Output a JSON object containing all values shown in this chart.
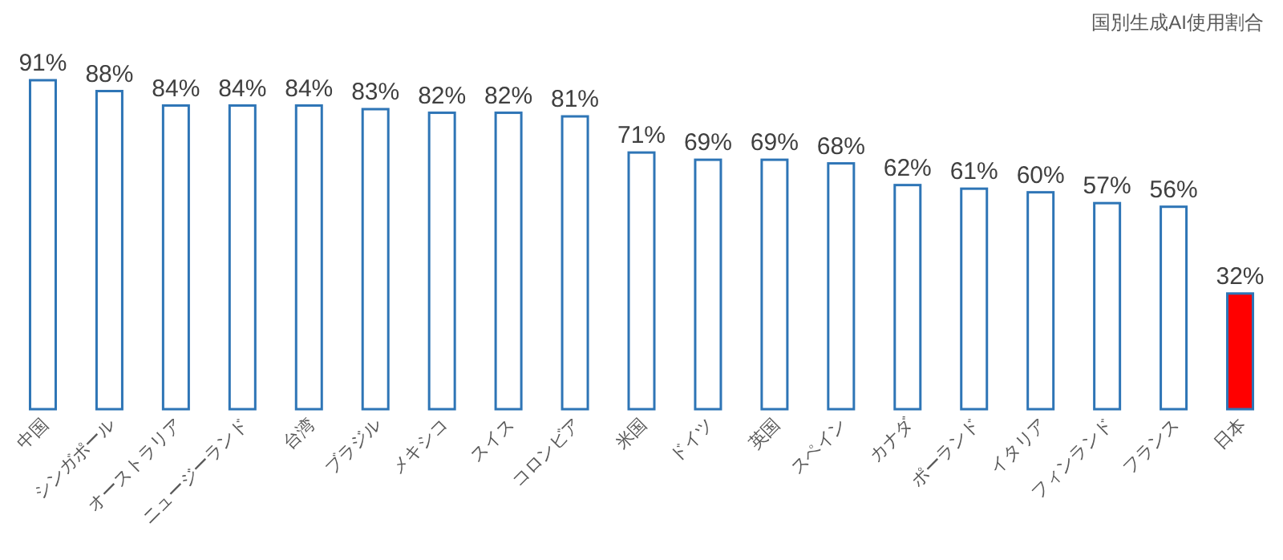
{
  "chart_data": {
    "type": "bar",
    "title": "国別生成AI使用割合",
    "categories": [
      "中国",
      "シンガポール",
      "オーストラリア",
      "ニュージーランド",
      "台湾",
      "ブラジル",
      "メキシコ",
      "スイス",
      "コロンビア",
      "米国",
      "ドイツ",
      "英国",
      "スペイン",
      "カナダ",
      "ポーランド",
      "イタリア",
      "フィンランド",
      "フランス",
      "日本"
    ],
    "values": [
      91,
      88,
      84,
      84,
      84,
      83,
      82,
      82,
      81,
      71,
      69,
      69,
      68,
      62,
      61,
      60,
      57,
      56,
      32
    ],
    "value_labels": [
      "91%",
      "88%",
      "84%",
      "84%",
      "84%",
      "83%",
      "82%",
      "82%",
      "81%",
      "71%",
      "69%",
      "69%",
      "68%",
      "62%",
      "61%",
      "60%",
      "57%",
      "56%",
      "32%"
    ],
    "color": "#2e75b6",
    "colors": [
      "#ffffff",
      "#ffffff",
      "#ffffff",
      "#ffffff",
      "#ffffff",
      "#ffffff",
      "#ffffff",
      "#ffffff",
      "#ffffff",
      "#ffffff",
      "#ffffff",
      "#ffffff",
      "#ffffff",
      "#ffffff",
      "#ffffff",
      "#ffffff",
      "#ffffff",
      "#ffffff",
      "#ff0000"
    ]
  }
}
